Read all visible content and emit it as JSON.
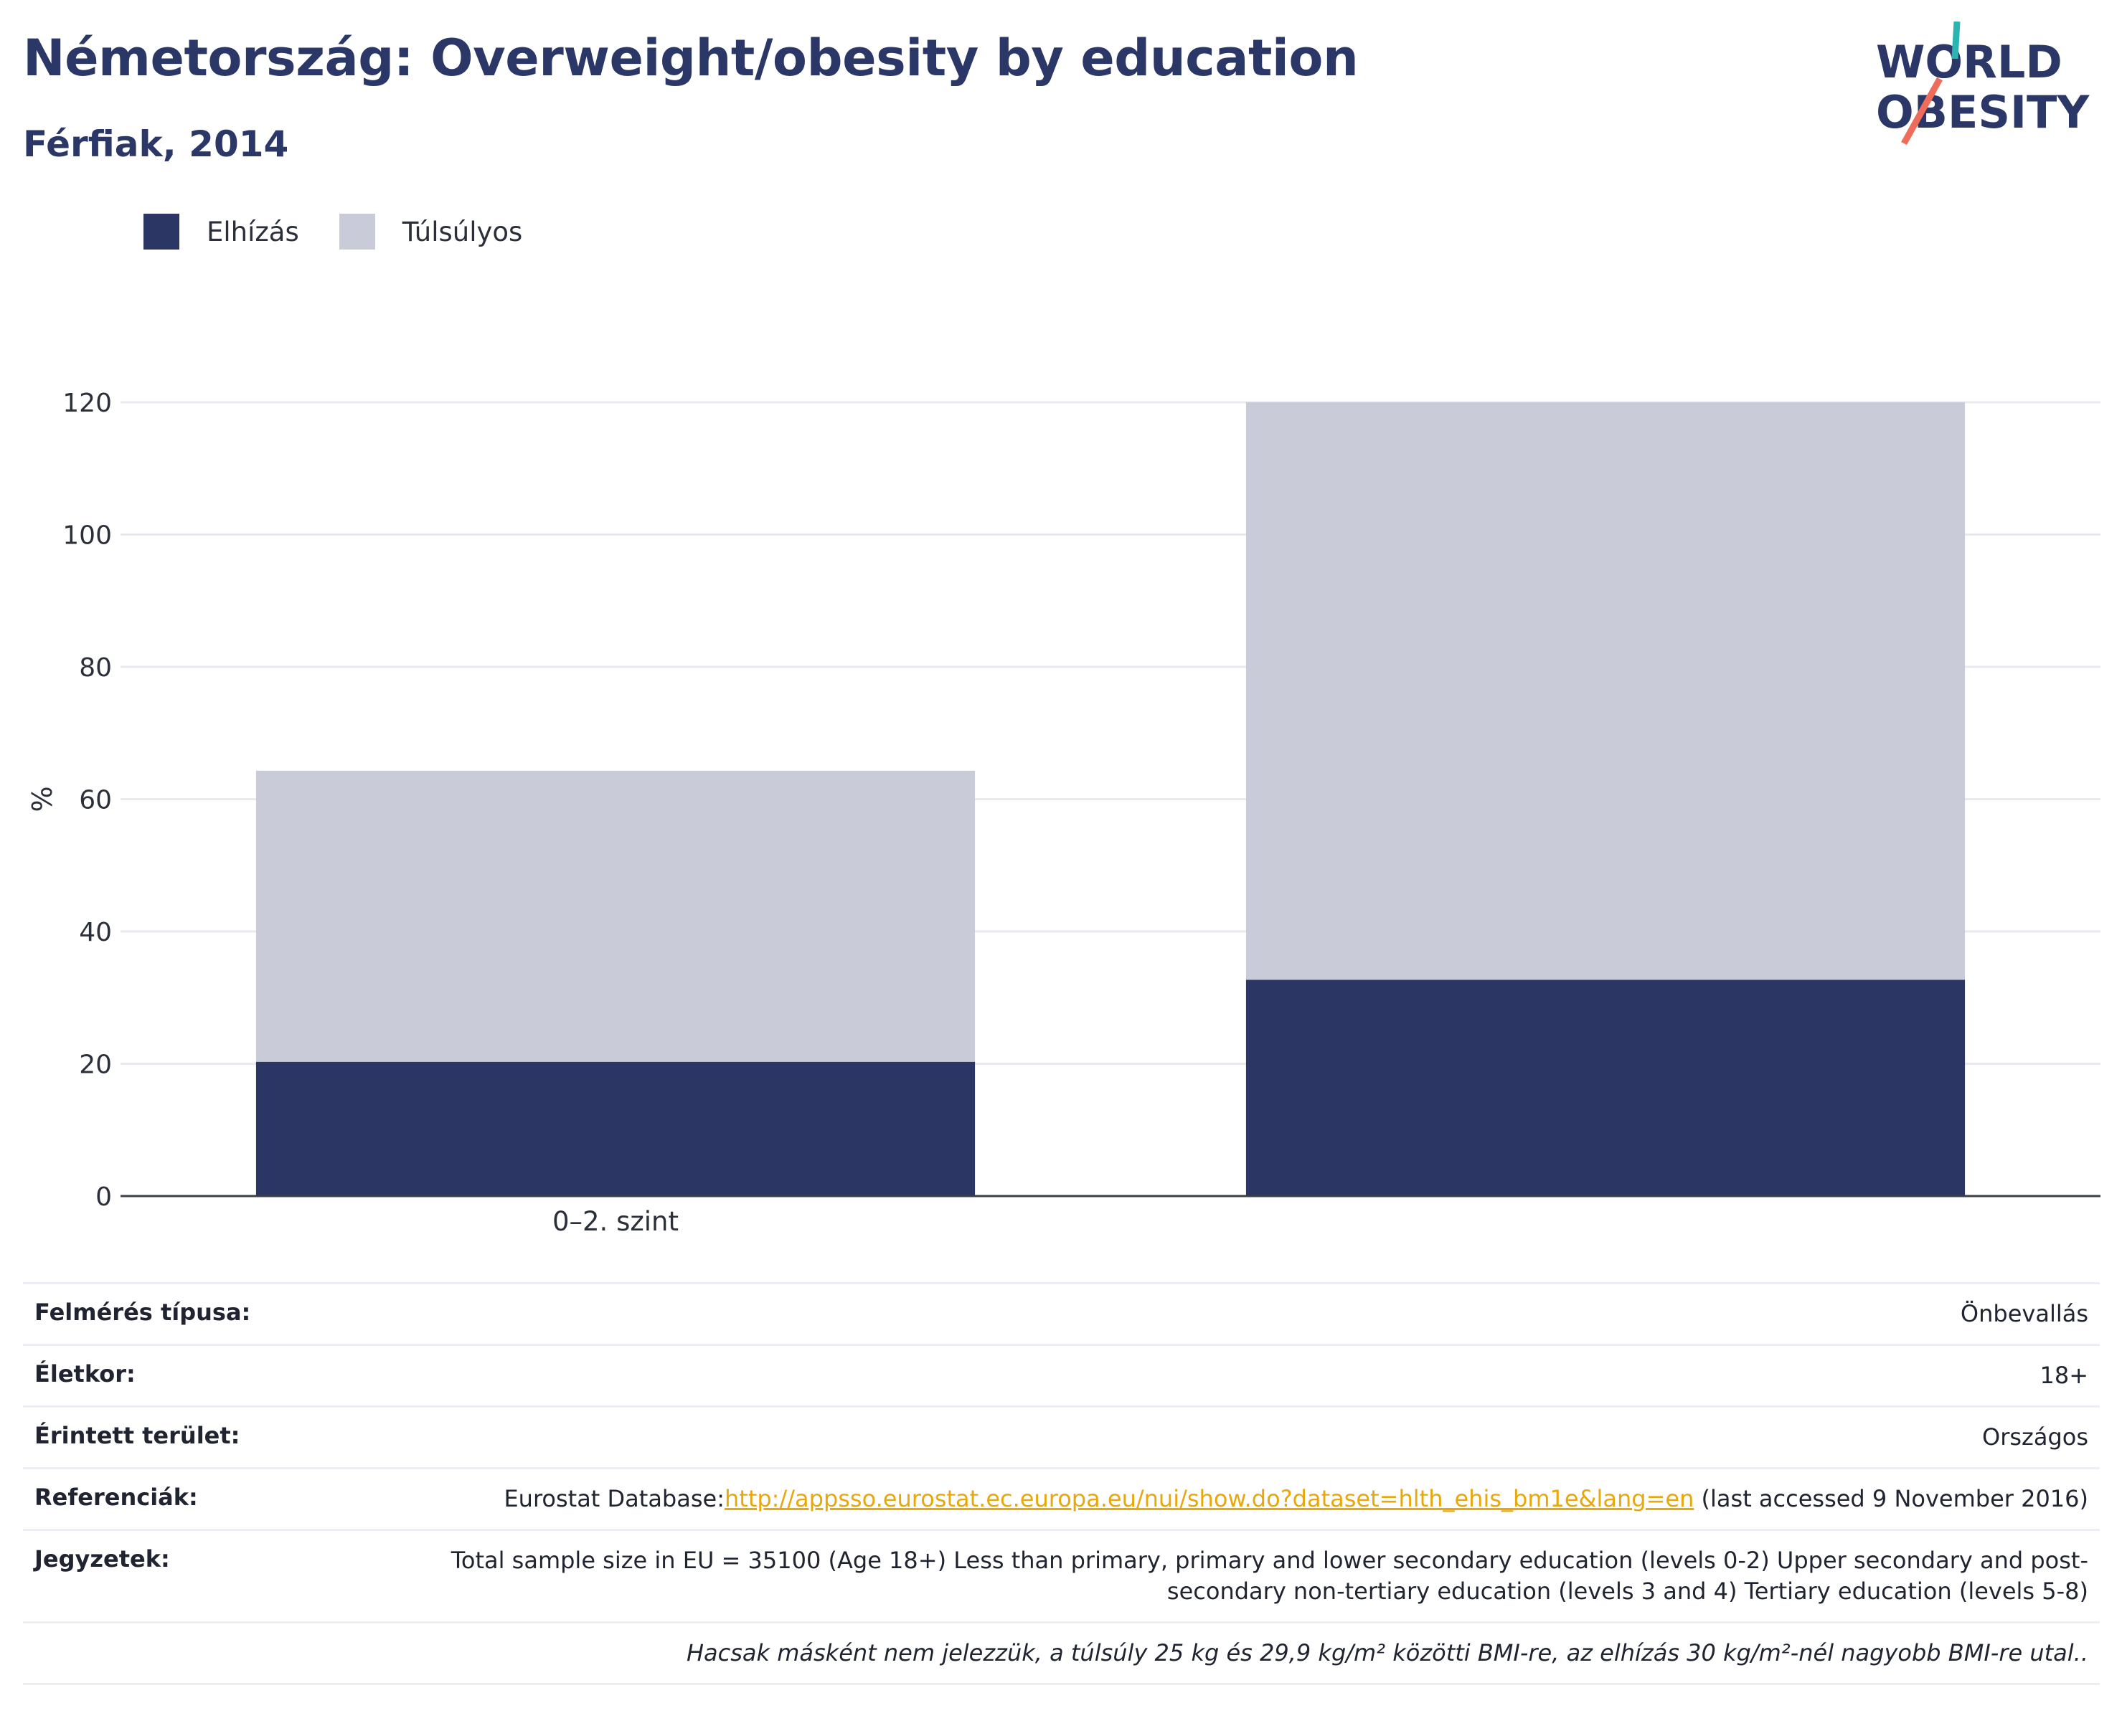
{
  "header": {
    "title": "Németország: Overweight/obesity by education",
    "subtitle": "Férfiak, 2014"
  },
  "logo": {
    "line1": "WORLD",
    "line2": "OBESITY"
  },
  "legend": [
    {
      "label": "Elhízás",
      "color": "#2b3664"
    },
    {
      "label": "Túlsúlyos",
      "color": "#c9ccd8"
    }
  ],
  "chart_data": {
    "type": "bar",
    "stacked": true,
    "categories": [
      "0–2. szint",
      ""
    ],
    "series": [
      {
        "name": "Elhízás",
        "color": "#2b3664",
        "values": [
          20.3,
          32.7
        ]
      },
      {
        "name": "Túlsúlyos",
        "color": "#c9ccd8",
        "values": [
          44.0,
          87.3
        ]
      }
    ],
    "ylabel": "%",
    "ylim": [
      0,
      120
    ],
    "yticks": [
      0,
      20,
      40,
      60,
      80,
      100,
      120
    ],
    "grid": true,
    "legend_position": "top-left"
  },
  "meta": {
    "survey_label": "Felmérés típusa:",
    "survey_value": "Önbevallás",
    "age_label": "Életkor:",
    "age_value": "18+",
    "area_label": "Érintett terület:",
    "area_value": "Országos",
    "ref_label": "Referenciák:",
    "ref_prefix": "Eurostat Database:",
    "ref_link": "http://appsso.eurostat.ec.europa.eu/nui/show.do?dataset=hlth_ehis_bm1e&lang=en",
    "ref_suffix": " (last accessed 9 November 2016)",
    "notes_label": "Jegyzetek:",
    "notes_value": "Total sample size in EU = 35100 (Age 18+) Less than primary, primary and lower secondary education (levels 0-2) Upper secondary and post-secondary non-tertiary education (levels 3 and 4) Tertiary education (levels 5-8)",
    "footnote": "Hacsak másként nem jelezzük, a túlsúly 25 kg és 29,9 kg/m² közötti BMI-re, az elhízás 30 kg/m²-nél nagyobb BMI-re utal.."
  }
}
